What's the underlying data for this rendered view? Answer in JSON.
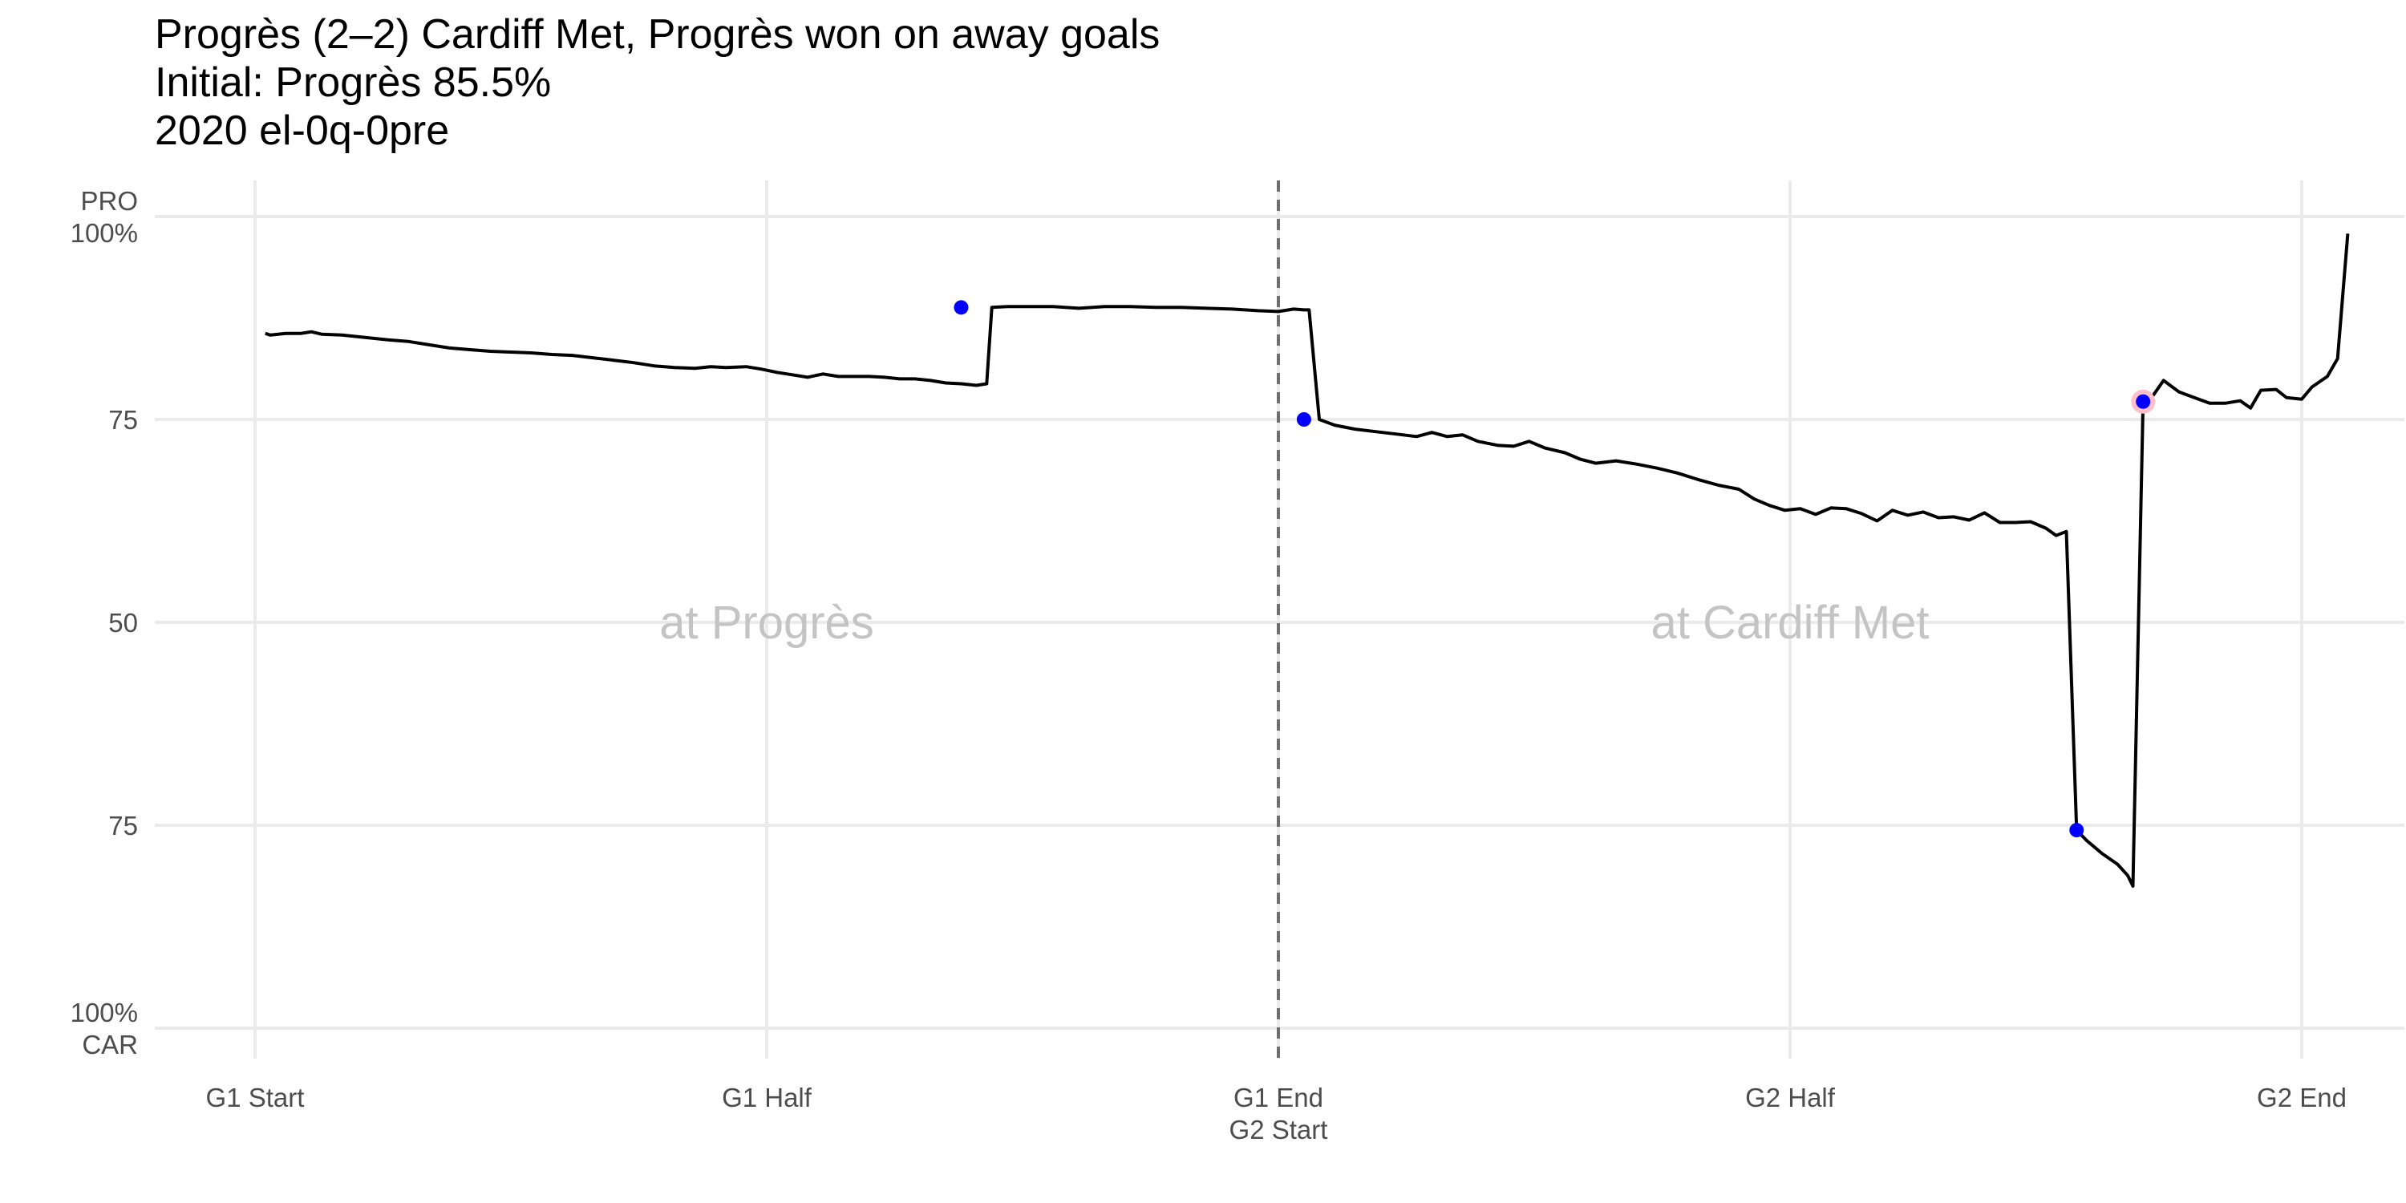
{
  "chart_data": {
    "type": "line",
    "title": "Progrès (2–2) Cardiff Met, Progrès won on away goals",
    "subtitle_lines": [
      "Initial: Progrès 85.5%",
      "2020 el-0q-0pre"
    ],
    "xlabel": "",
    "ylabel": "",
    "x_range": [
      0,
      4
    ],
    "y_range": [
      0,
      100
    ],
    "x_ticks": [
      {
        "value": 0,
        "lines": [
          "G1 Start"
        ]
      },
      {
        "value": 1,
        "lines": [
          "G1 Half"
        ]
      },
      {
        "value": 2,
        "lines": [
          "G1 End",
          "G2 Start"
        ]
      },
      {
        "value": 3,
        "lines": [
          "G2 Half"
        ]
      },
      {
        "value": 4,
        "lines": [
          "G2 End"
        ]
      }
    ],
    "y_ticks": [
      {
        "value": 100,
        "lines": [
          "PRO",
          "100%"
        ]
      },
      {
        "value": 75,
        "lines": [
          "75"
        ]
      },
      {
        "value": 50,
        "lines": [
          "50"
        ]
      },
      {
        "value": 25,
        "lines": [
          "75"
        ]
      },
      {
        "value": 0,
        "lines": [
          "100%",
          "CAR"
        ]
      }
    ],
    "divider_x": 2,
    "venue_labels": [
      {
        "text": "at Progrès",
        "x": 1,
        "y": 50
      },
      {
        "text": "at Cardiff Met",
        "x": 3,
        "y": 50
      }
    ],
    "series": [
      {
        "color": "#000000",
        "points": [
          [
            0.02,
            85.6
          ],
          [
            0.03,
            85.4
          ],
          [
            0.06,
            85.6
          ],
          [
            0.09,
            85.6
          ],
          [
            0.11,
            85.8
          ],
          [
            0.13,
            85.5
          ],
          [
            0.17,
            85.4
          ],
          [
            0.2,
            85.2
          ],
          [
            0.23,
            85.0
          ],
          [
            0.26,
            84.8
          ],
          [
            0.3,
            84.6
          ],
          [
            0.34,
            84.2
          ],
          [
            0.38,
            83.8
          ],
          [
            0.42,
            83.6
          ],
          [
            0.46,
            83.4
          ],
          [
            0.5,
            83.3
          ],
          [
            0.54,
            83.2
          ],
          [
            0.58,
            83.0
          ],
          [
            0.62,
            82.9
          ],
          [
            0.66,
            82.6
          ],
          [
            0.7,
            82.3
          ],
          [
            0.74,
            82.0
          ],
          [
            0.78,
            81.6
          ],
          [
            0.82,
            81.4
          ],
          [
            0.86,
            81.3
          ],
          [
            0.89,
            81.5
          ],
          [
            0.92,
            81.4
          ],
          [
            0.96,
            81.5
          ],
          [
            0.99,
            81.2
          ],
          [
            1.02,
            80.8
          ],
          [
            1.05,
            80.5
          ],
          [
            1.08,
            80.2
          ],
          [
            1.11,
            80.6
          ],
          [
            1.14,
            80.3
          ],
          [
            1.17,
            80.3
          ],
          [
            1.2,
            80.3
          ],
          [
            1.23,
            80.2
          ],
          [
            1.26,
            80.0
          ],
          [
            1.29,
            80.0
          ],
          [
            1.32,
            79.8
          ],
          [
            1.35,
            79.5
          ],
          [
            1.38,
            79.4
          ],
          [
            1.4,
            79.2
          ],
          [
            1.42,
            79.5
          ],
          [
            1.38,
            79.4
          ],
          [
            1.41,
            79.2
          ],
          [
            1.43,
            79.4
          ],
          [
            1.44,
            87.8
          ],
          [
            1.47,
            88.0
          ],
          [
            1.52,
            88.1
          ],
          [
            1.56,
            88.0
          ],
          [
            1.61,
            87.7
          ],
          [
            1.66,
            87.9
          ],
          [
            1.71,
            88.0
          ],
          [
            1.76,
            87.8
          ],
          [
            1.81,
            87.8
          ],
          [
            1.86,
            87.7
          ],
          [
            1.91,
            87.8
          ],
          [
            1.96,
            87.6
          ],
          [
            2.0,
            87.4
          ],
          [
            2.02,
            87.6
          ],
          [
            2.03,
            87.5
          ],
          [
            2.04,
            87.2
          ],
          [
            2.05,
            87.0
          ],
          [
            2.05,
            87.1
          ],
          [
            2.06,
            88.9
          ],
          [
            2.07,
            88.8
          ],
          [
            2.1,
            88.3
          ],
          [
            2.03,
            88.6
          ],
          [
            2.06,
            88.6
          ],
          [
            2.08,
            88.5
          ],
          [
            2.1,
            88.0
          ]
        ]
      }
    ],
    "line_points": [
      [
        0.02,
        85.6
      ],
      [
        0.03,
        85.4
      ],
      [
        0.06,
        85.6
      ],
      [
        0.09,
        85.6
      ],
      [
        0.11,
        85.8
      ],
      [
        0.13,
        85.5
      ],
      [
        0.17,
        85.4
      ],
      [
        0.2,
        85.2
      ],
      [
        0.23,
        85.0
      ],
      [
        0.26,
        84.8
      ],
      [
        0.3,
        84.6
      ],
      [
        0.34,
        84.2
      ],
      [
        0.38,
        83.8
      ],
      [
        0.42,
        83.6
      ],
      [
        0.46,
        83.4
      ],
      [
        0.5,
        83.3
      ],
      [
        0.54,
        83.2
      ],
      [
        0.58,
        83.0
      ],
      [
        0.62,
        82.9
      ],
      [
        0.66,
        82.6
      ],
      [
        0.7,
        82.3
      ],
      [
        0.74,
        82.0
      ],
      [
        0.78,
        81.6
      ],
      [
        0.82,
        81.4
      ],
      [
        0.86,
        81.3
      ],
      [
        0.89,
        81.5
      ],
      [
        0.92,
        81.4
      ],
      [
        0.96,
        81.5
      ],
      [
        0.99,
        81.2
      ],
      [
        1.02,
        80.8
      ],
      [
        1.05,
        80.5
      ],
      [
        1.08,
        80.2
      ],
      [
        1.11,
        80.6
      ],
      [
        1.14,
        80.3
      ],
      [
        1.17,
        80.3
      ],
      [
        1.2,
        80.3
      ],
      [
        1.23,
        80.2
      ],
      [
        1.26,
        80.0
      ],
      [
        1.29,
        80.0
      ],
      [
        1.32,
        79.8
      ],
      [
        1.35,
        79.5
      ],
      [
        1.38,
        79.4
      ],
      [
        1.41,
        79.2
      ],
      [
        1.43,
        79.4
      ],
      [
        1.44,
        88.8
      ],
      [
        1.47,
        88.9
      ],
      [
        1.52,
        88.9
      ],
      [
        1.56,
        88.9
      ],
      [
        1.61,
        88.7
      ],
      [
        1.66,
        88.9
      ],
      [
        1.71,
        88.9
      ],
      [
        1.76,
        88.8
      ],
      [
        1.81,
        88.8
      ],
      [
        1.86,
        88.7
      ],
      [
        1.91,
        88.6
      ],
      [
        1.96,
        88.4
      ],
      [
        2.0,
        88.3
      ],
      [
        2.03,
        88.6
      ],
      [
        2.05,
        88.5
      ],
      [
        2.06,
        88.5
      ],
      [
        2.08,
        75.0
      ],
      [
        2.11,
        74.3
      ],
      [
        2.15,
        73.8
      ],
      [
        2.19,
        73.5
      ],
      [
        2.23,
        73.2
      ],
      [
        2.27,
        72.9
      ],
      [
        2.3,
        73.4
      ],
      [
        2.33,
        72.9
      ],
      [
        2.36,
        73.1
      ],
      [
        2.39,
        72.3
      ],
      [
        2.43,
        71.8
      ],
      [
        2.46,
        71.7
      ],
      [
        2.49,
        72.3
      ],
      [
        2.52,
        71.5
      ],
      [
        2.56,
        70.9
      ],
      [
        2.59,
        70.1
      ],
      [
        2.62,
        69.6
      ],
      [
        2.66,
        69.9
      ],
      [
        2.7,
        69.5
      ],
      [
        2.74,
        69.0
      ],
      [
        2.78,
        68.4
      ],
      [
        2.82,
        67.6
      ],
      [
        2.86,
        66.9
      ],
      [
        2.9,
        66.4
      ],
      [
        2.93,
        65.2
      ],
      [
        2.96,
        64.4
      ],
      [
        2.99,
        63.8
      ],
      [
        3.02,
        64.0
      ],
      [
        3.05,
        63.3
      ],
      [
        3.08,
        64.1
      ],
      [
        3.11,
        64.0
      ],
      [
        3.14,
        63.4
      ],
      [
        3.17,
        62.5
      ],
      [
        3.2,
        63.8
      ],
      [
        3.23,
        63.2
      ],
      [
        3.26,
        63.6
      ],
      [
        3.29,
        62.9
      ],
      [
        3.32,
        63.0
      ],
      [
        3.35,
        62.6
      ],
      [
        3.38,
        63.5
      ],
      [
        3.41,
        62.3
      ],
      [
        3.44,
        62.3
      ],
      [
        3.47,
        62.4
      ],
      [
        3.5,
        61.6
      ],
      [
        3.52,
        60.7
      ],
      [
        3.54,
        61.2
      ],
      [
        3.56,
        24.4
      ],
      [
        3.58,
        23.1
      ],
      [
        3.61,
        21.5
      ],
      [
        3.64,
        20.2
      ],
      [
        3.66,
        18.8
      ],
      [
        3.67,
        17.5
      ],
      [
        3.69,
        77.2
      ],
      [
        3.71,
        78.0
      ],
      [
        3.73,
        79.8
      ],
      [
        3.76,
        78.4
      ],
      [
        3.79,
        77.7
      ],
      [
        3.82,
        77.0
      ],
      [
        3.85,
        77.0
      ],
      [
        3.88,
        77.3
      ],
      [
        3.9,
        76.4
      ],
      [
        3.92,
        78.6
      ],
      [
        3.95,
        78.7
      ],
      [
        3.97,
        77.7
      ],
      [
        4.0,
        77.5
      ],
      [
        4.02,
        79.0
      ],
      [
        4.05,
        80.3
      ],
      [
        4.07,
        82.5
      ],
      [
        4.09,
        97.9
      ]
    ],
    "event_markers": [
      {
        "x": 1.38,
        "y": 88.8,
        "color": "#0000ff"
      },
      {
        "x": 2.05,
        "y": 75.0,
        "color": "#0000ff"
      },
      {
        "x": 3.56,
        "y": 24.4,
        "color": "#0000ff"
      },
      {
        "x": 3.69,
        "y": 77.2,
        "color": "#0000ff",
        "halo": "#ffc0cb"
      }
    ],
    "grid": true,
    "legend": "none"
  }
}
